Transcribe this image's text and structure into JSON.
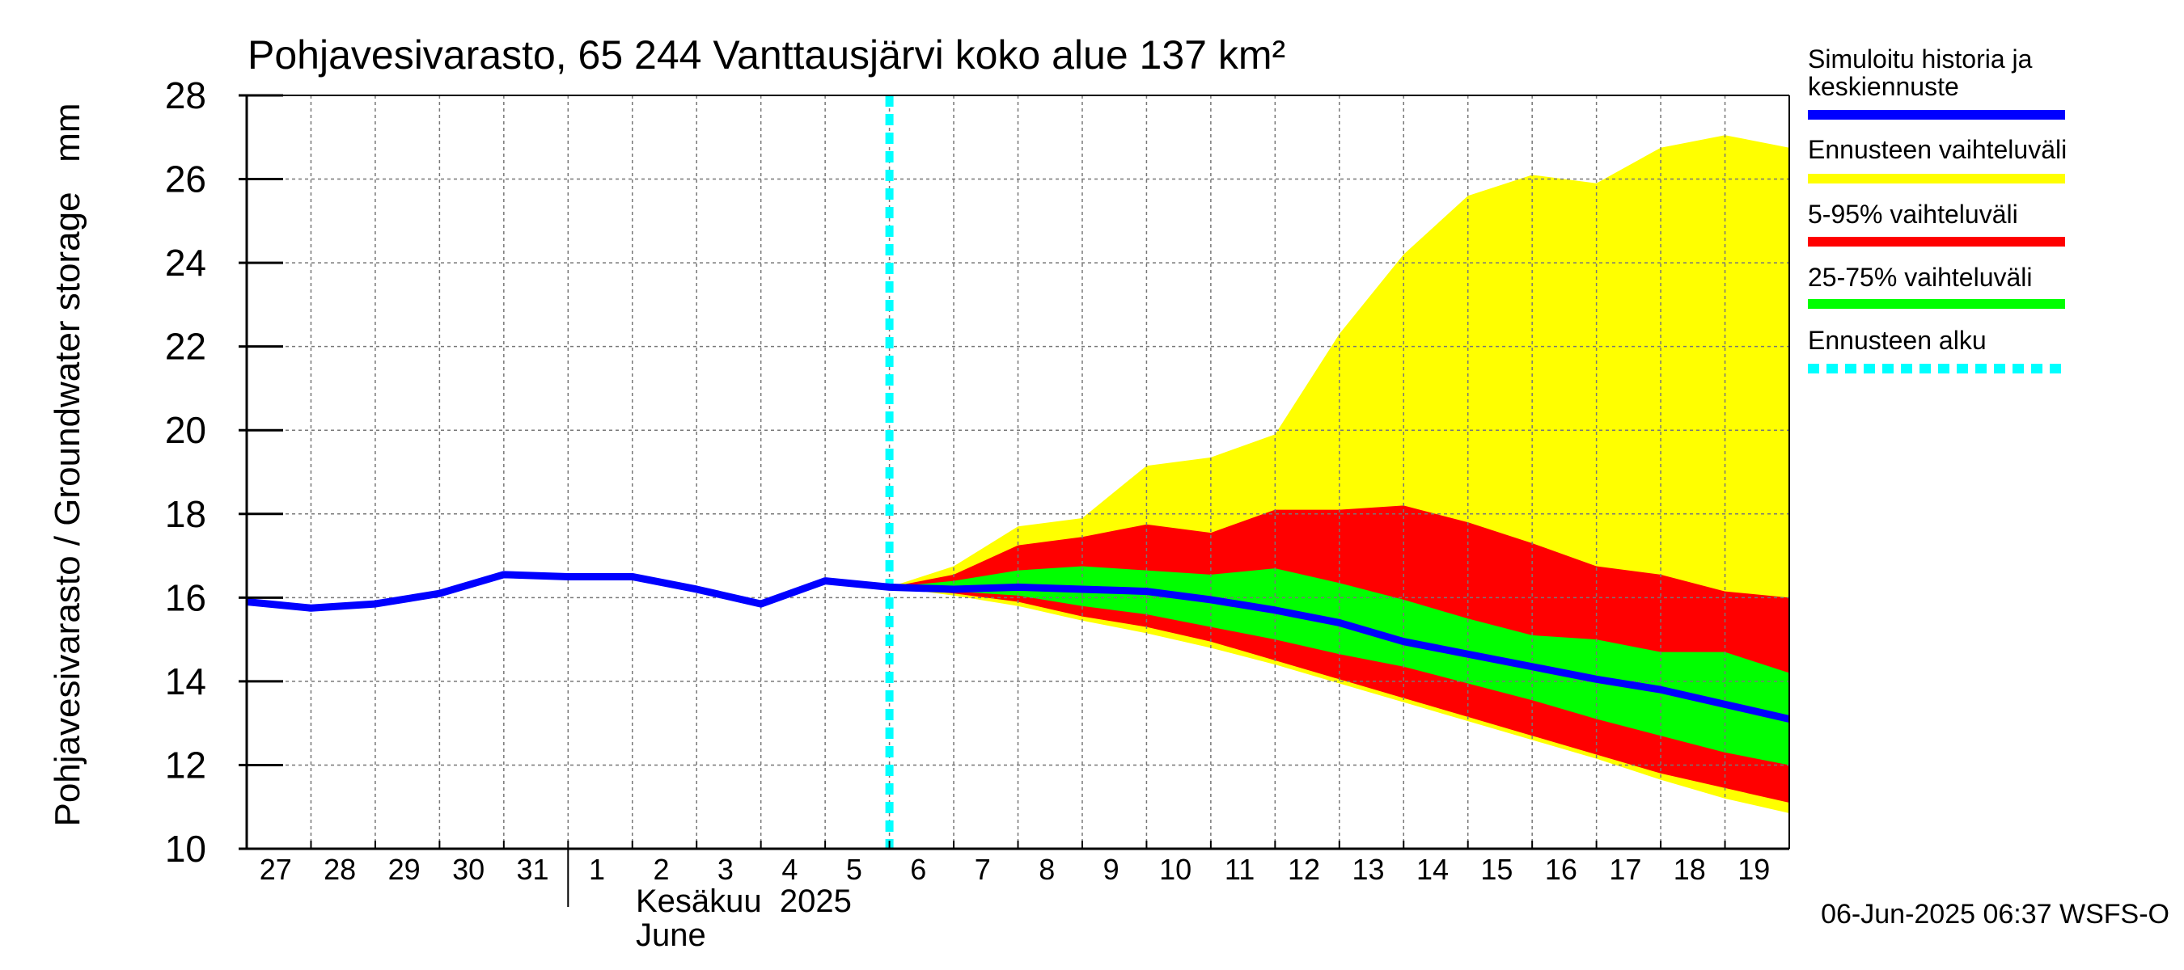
{
  "chart_data": {
    "type": "area",
    "title": "Pohjavesivarasto, 65 244 Vanttausjärvi koko alue 137 km²",
    "ylabel": "Pohjavesivarasto / Groundwater storage   mm",
    "ylim": [
      10,
      28
    ],
    "yticks": [
      10,
      12,
      14,
      16,
      18,
      20,
      22,
      24,
      26,
      28
    ],
    "x_start": "2025-05-27",
    "x_end": "2025-06-19",
    "xtick_labels": [
      "27",
      "28",
      "29",
      "30",
      "31",
      "1",
      "2",
      "3",
      "4",
      "5",
      "6",
      "7",
      "8",
      "9",
      "10",
      "11",
      "12",
      "13",
      "14",
      "15",
      "16",
      "17",
      "18",
      "19"
    ],
    "month_label_fi": "Kesäkuu  2025",
    "month_label_en": "June",
    "grid": true,
    "forecast_start": "2025-06-06",
    "timestamp": "06-Jun-2025 06:37 WSFS-O",
    "legend": [
      {
        "label": "Simuloitu historia ja keskiennuste",
        "color": "#0000ff",
        "style": "solid"
      },
      {
        "label": "Ennusteen vaihteluväli",
        "color": "#ffff00",
        "style": "solid"
      },
      {
        "label": "5-95% vaihteluväli",
        "color": "#ff0000",
        "style": "solid"
      },
      {
        "label": "25-75% vaihteluväli",
        "color": "#00ff00",
        "style": "solid"
      },
      {
        "label": "Ennusteen alku",
        "color": "#00ffff",
        "style": "dashed"
      }
    ],
    "history": {
      "x": [
        "2025-05-27",
        "2025-05-28",
        "2025-05-29",
        "2025-05-30",
        "2025-05-31",
        "2025-06-01",
        "2025-06-02",
        "2025-06-03",
        "2025-06-04",
        "2025-06-05",
        "2025-06-06"
      ],
      "y": [
        15.9,
        15.75,
        15.85,
        16.1,
        16.55,
        16.5,
        16.5,
        16.2,
        15.85,
        16.4,
        16.25
      ]
    },
    "forecast_x": [
      "2025-06-06",
      "2025-06-07",
      "2025-06-08",
      "2025-06-09",
      "2025-06-10",
      "2025-06-11",
      "2025-06-12",
      "2025-06-13",
      "2025-06-14",
      "2025-06-15",
      "2025-06-16",
      "2025-06-17",
      "2025-06-18",
      "2025-06-19",
      "2025-06-20"
    ],
    "median": [
      16.25,
      16.2,
      16.25,
      16.2,
      16.15,
      15.95,
      15.7,
      15.4,
      14.95,
      14.65,
      14.35,
      14.05,
      13.8,
      13.45,
      13.1
    ],
    "range_min_max": {
      "low": [
        16.25,
        16.05,
        15.8,
        15.45,
        15.15,
        14.8,
        14.4,
        13.95,
        13.5,
        13.05,
        12.6,
        12.15,
        11.65,
        11.2,
        10.85
      ],
      "high": [
        16.25,
        16.75,
        17.7,
        17.9,
        19.15,
        19.35,
        19.9,
        22.3,
        24.2,
        25.6,
        26.1,
        25.9,
        26.75,
        27.05,
        26.75
      ]
    },
    "range_5_95": {
      "low": [
        16.25,
        16.1,
        15.9,
        15.55,
        15.3,
        14.95,
        14.5,
        14.05,
        13.6,
        13.15,
        12.7,
        12.25,
        11.8,
        11.45,
        11.1
      ],
      "high": [
        16.25,
        16.55,
        17.25,
        17.45,
        17.75,
        17.55,
        18.1,
        18.1,
        18.2,
        17.8,
        17.3,
        16.75,
        16.55,
        16.15,
        16.0
      ]
    },
    "range_25_75": {
      "low": [
        16.25,
        16.15,
        16.05,
        15.8,
        15.6,
        15.3,
        15.0,
        14.65,
        14.35,
        13.95,
        13.55,
        13.1,
        12.7,
        12.3,
        12.0
      ],
      "high": [
        16.25,
        16.4,
        16.65,
        16.75,
        16.65,
        16.55,
        16.7,
        16.35,
        15.95,
        15.5,
        15.1,
        15.0,
        14.7,
        14.7,
        14.2
      ]
    }
  }
}
